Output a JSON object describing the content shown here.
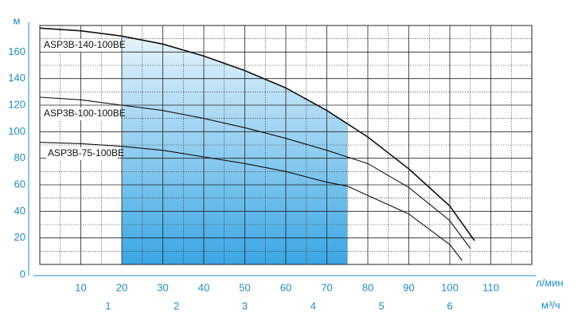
{
  "chart_data": {
    "type": "line",
    "y_label": "м",
    "x_label": "л/мин",
    "x2_label": "м³/ч",
    "xlim": [
      0,
      120
    ],
    "ylim": [
      0,
      180
    ],
    "xticks": [
      10,
      20,
      30,
      40,
      50,
      60,
      70,
      80,
      90,
      100,
      110
    ],
    "minor_xticks": [
      5,
      15,
      25,
      35,
      45,
      55,
      65,
      75,
      85,
      95,
      105,
      115
    ],
    "yticks": [
      0,
      20,
      40,
      60,
      80,
      100,
      120,
      140,
      160
    ],
    "minor_yticks": [
      10,
      30,
      50,
      70,
      90,
      110,
      130,
      150,
      170
    ],
    "x2lim": [
      0,
      7.2
    ],
    "x2ticks": [
      1,
      2,
      3,
      4,
      5,
      6
    ],
    "grid": true,
    "highlight_range": [
      20,
      75
    ],
    "series": [
      {
        "name": "ASP3B-140-100BE",
        "color": "#111111",
        "x": [
          0,
          10,
          20,
          30,
          40,
          50,
          60,
          70,
          75,
          80,
          90,
          100,
          106
        ],
        "values": [
          178,
          176,
          172,
          166,
          157,
          146,
          133,
          116,
          106,
          96,
          72,
          44,
          18
        ]
      },
      {
        "name": "ASP3B-100-100BE",
        "color": "#111111",
        "x": [
          0,
          10,
          20,
          30,
          40,
          50,
          60,
          70,
          75,
          80,
          90,
          100,
          105
        ],
        "values": [
          126,
          124,
          120,
          116,
          110,
          103,
          95,
          86,
          81,
          76,
          58,
          33,
          12
        ]
      },
      {
        "name": "ASP3B-75-100BE",
        "color": "#111111",
        "x": [
          0,
          10,
          20,
          30,
          40,
          50,
          60,
          70,
          75,
          80,
          90,
          100,
          103
        ],
        "values": [
          92,
          91,
          89,
          86,
          81,
          76,
          70,
          62,
          59,
          52,
          38,
          15,
          3
        ]
      }
    ]
  }
}
